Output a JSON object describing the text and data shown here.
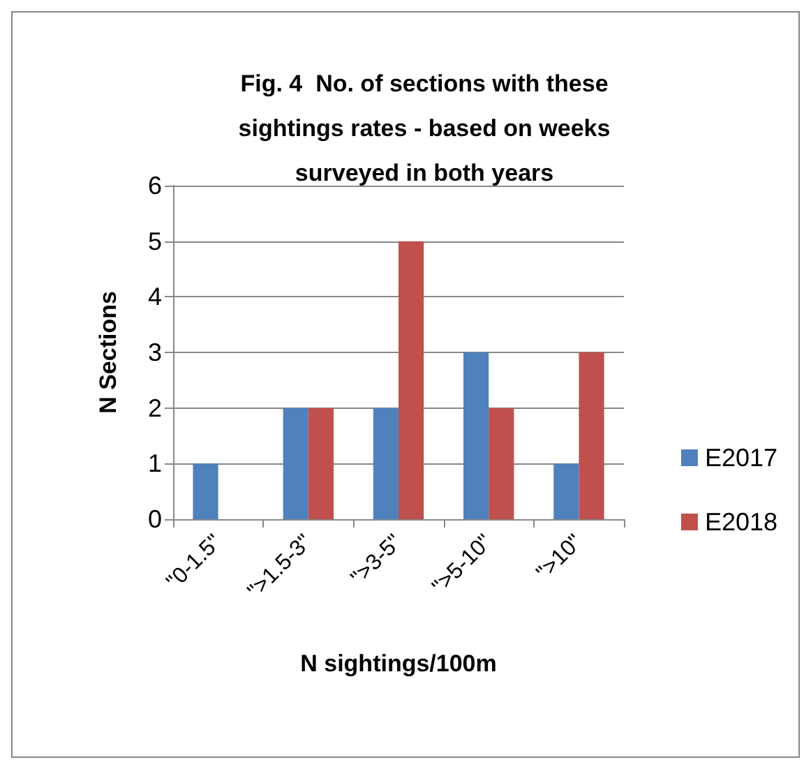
{
  "chart_data": {
    "type": "bar",
    "title": "Fig. 4  No. of sections with these sightings rates - based on weeks surveyed in both years",
    "xlabel": "N sightings/100m",
    "ylabel": "N Sections",
    "categories": [
      "\"0-1.5\"",
      "\">1.5-3\"",
      "\">3-5\"",
      "\">5-10\"",
      "\">10\""
    ],
    "series": [
      {
        "name": "E2017",
        "color": "#4f81bd",
        "values": [
          1,
          2,
          2,
          3,
          1
        ]
      },
      {
        "name": "E2018",
        "color": "#c0504d",
        "values": [
          0,
          2,
          5,
          2,
          3
        ]
      }
    ],
    "ylim": [
      0,
      6
    ],
    "yticks": [
      0,
      1,
      2,
      3,
      4,
      5,
      6
    ],
    "grid": "y",
    "legend": "right"
  }
}
